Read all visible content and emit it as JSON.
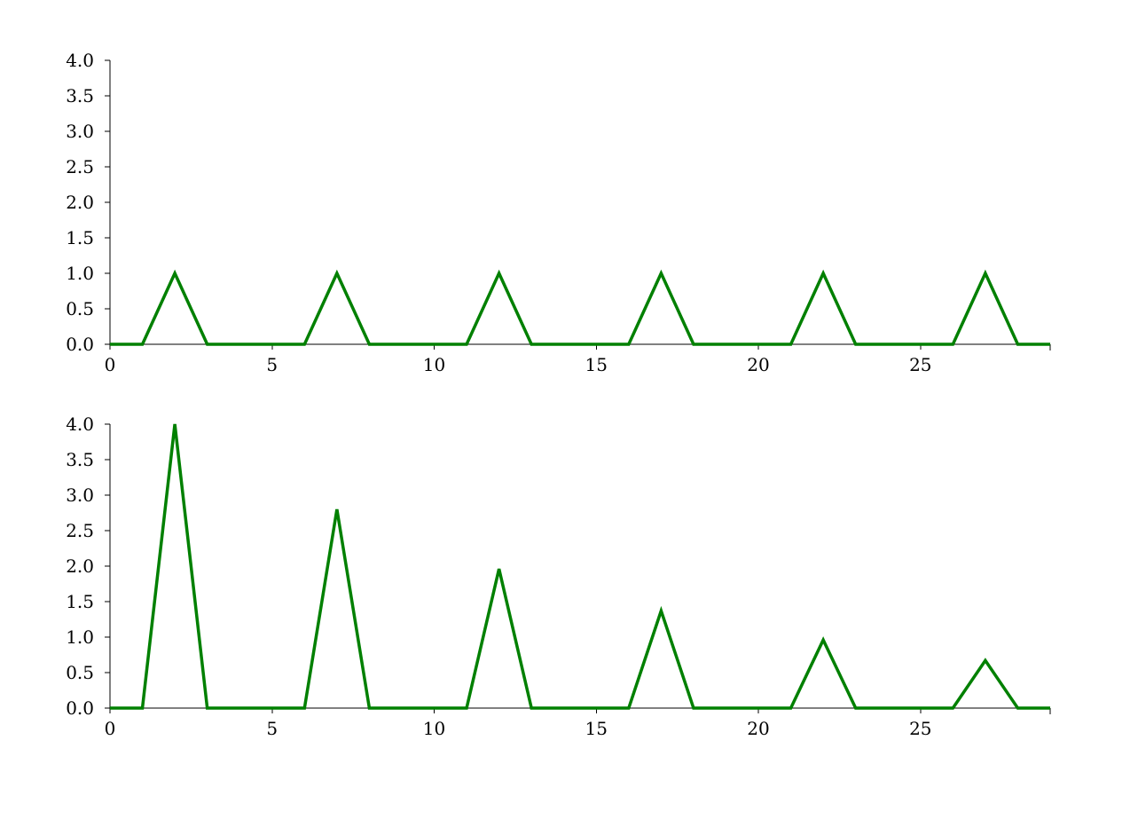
{
  "chart_data": [
    {
      "type": "line",
      "title": "",
      "xlabel": "",
      "ylabel": "",
      "xlim": [
        0,
        29
      ],
      "ylim": [
        0,
        4
      ],
      "x_ticks": [
        0,
        5,
        10,
        15,
        20,
        25
      ],
      "x_tick_labels": [
        "0",
        "5",
        "10",
        "15",
        "20",
        "25"
      ],
      "y_ticks": [
        0,
        0.5,
        1,
        1.5,
        2,
        2.5,
        3,
        3.5,
        4
      ],
      "y_tick_labels": [
        "0.0",
        "0.5",
        "1.0",
        "1.5",
        "2.0",
        "2.5",
        "3.0",
        "3.5",
        "4.0"
      ],
      "grid": false,
      "legend": "none",
      "series": [
        {
          "color": "#008000",
          "x": [
            0,
            1,
            2,
            3,
            4,
            5,
            6,
            7,
            8,
            9,
            10,
            11,
            12,
            13,
            14,
            15,
            16,
            17,
            18,
            19,
            20,
            21,
            22,
            23,
            24,
            25,
            26,
            27,
            28,
            29
          ],
          "y": [
            0,
            0,
            1,
            0,
            0,
            0,
            0,
            1,
            0,
            0,
            0,
            0,
            1,
            0,
            0,
            0,
            0,
            1,
            0,
            0,
            0,
            0,
            1,
            0,
            0,
            0,
            0,
            1,
            0,
            0
          ]
        }
      ]
    },
    {
      "type": "line",
      "title": "",
      "xlabel": "",
      "ylabel": "",
      "xlim": [
        0,
        29
      ],
      "ylim": [
        0,
        4
      ],
      "x_ticks": [
        0,
        5,
        10,
        15,
        20,
        25
      ],
      "x_tick_labels": [
        "0",
        "5",
        "10",
        "15",
        "20",
        "25"
      ],
      "y_ticks": [
        0,
        0.5,
        1,
        1.5,
        2,
        2.5,
        3,
        3.5,
        4
      ],
      "y_tick_labels": [
        "0.0",
        "0.5",
        "1.0",
        "1.5",
        "2.0",
        "2.5",
        "3.0",
        "3.5",
        "4.0"
      ],
      "grid": false,
      "legend": "none",
      "series": [
        {
          "color": "#008000",
          "x": [
            0,
            1,
            2,
            3,
            4,
            5,
            6,
            7,
            8,
            9,
            10,
            11,
            12,
            13,
            14,
            15,
            16,
            17,
            18,
            19,
            20,
            21,
            22,
            23,
            24,
            25,
            26,
            27,
            28,
            29
          ],
          "y": [
            0,
            0,
            4,
            0,
            0,
            0,
            0,
            2.8,
            0,
            0,
            0,
            0,
            1.96,
            0,
            0,
            0,
            0,
            1.37,
            0,
            0,
            0,
            0,
            0.96,
            0,
            0,
            0,
            0,
            0.67,
            0,
            0
          ]
        }
      ]
    }
  ]
}
